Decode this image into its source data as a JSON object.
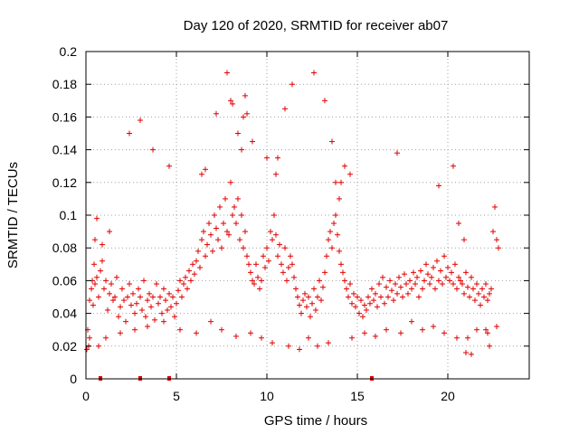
{
  "chart_data": {
    "type": "scatter",
    "title": "Day 120 of 2020, SRMTID for receiver ab07",
    "xlabel": "GPS time / hours",
    "ylabel": "SRMTID / TECUs",
    "xlim": [
      0,
      24.5
    ],
    "ylim": [
      0,
      0.2
    ],
    "xticks": [
      0,
      5,
      10,
      15,
      20
    ],
    "xtick_labels": [
      "0",
      "5",
      "10",
      "15",
      "20"
    ],
    "yticks": [
      0,
      0.02,
      0.04,
      0.06,
      0.08,
      0.1,
      0.12,
      0.14,
      0.16,
      0.18,
      0.2
    ],
    "ytick_labels": [
      "0",
      "0.02",
      "0.04",
      "0.06",
      "0.08",
      "0.1",
      "0.12",
      "0.14",
      "0.16",
      "0.18",
      "0.2"
    ],
    "grid": true,
    "marker": "+",
    "color": "#e00000",
    "series": [
      {
        "name": "SRMTID",
        "x": [
          0.05,
          0.1,
          0.15,
          0.2,
          0.3,
          0.35,
          0.4,
          0.45,
          0.5,
          0.6,
          0.7,
          0.8,
          0.9,
          1.0,
          1.1,
          1.2,
          1.3,
          1.4,
          1.5,
          1.6,
          1.7,
          1.8,
          1.9,
          2.0,
          2.1,
          2.2,
          2.3,
          2.4,
          2.5,
          2.6,
          2.7,
          2.8,
          2.9,
          3.0,
          3.1,
          3.2,
          3.3,
          3.4,
          3.5,
          3.6,
          3.7,
          3.8,
          3.9,
          4.0,
          4.1,
          4.2,
          4.3,
          4.4,
          4.5,
          4.6,
          4.7,
          4.8,
          4.9,
          5.0,
          5.1,
          5.2,
          5.3,
          5.4,
          5.5,
          5.6,
          5.7,
          5.8,
          5.9,
          6.0,
          6.1,
          6.2,
          6.3,
          6.4,
          6.5,
          6.6,
          6.7,
          6.8,
          6.9,
          7.0,
          7.1,
          7.2,
          7.3,
          7.4,
          7.5,
          7.6,
          7.7,
          7.8,
          7.9,
          8.0,
          8.1,
          8.2,
          8.3,
          8.4,
          8.5,
          8.6,
          8.7,
          8.8,
          8.9,
          9.0,
          9.1,
          9.2,
          9.3,
          9.4,
          9.5,
          9.6,
          9.7,
          9.8,
          9.9,
          10.0,
          10.1,
          10.2,
          10.3,
          10.4,
          10.5,
          10.6,
          10.7,
          10.8,
          10.9,
          11.0,
          11.1,
          11.2,
          11.3,
          11.4,
          11.5,
          11.6,
          11.7,
          11.8,
          11.9,
          12.0,
          12.1,
          12.2,
          12.3,
          12.4,
          12.5,
          12.6,
          12.7,
          12.8,
          12.9,
          13.0,
          13.1,
          13.2,
          13.3,
          13.4,
          13.5,
          13.6,
          13.7,
          13.8,
          13.9,
          14.0,
          14.1,
          14.2,
          14.3,
          14.4,
          14.5,
          14.6,
          14.7,
          14.8,
          14.9,
          15.0,
          15.1,
          15.2,
          15.3,
          15.4,
          15.5,
          15.6,
          15.7,
          15.8,
          15.9,
          16.0,
          16.1,
          16.2,
          16.3,
          16.4,
          16.5,
          16.6,
          16.7,
          16.8,
          16.9,
          17.0,
          17.1,
          17.2,
          17.3,
          17.4,
          17.5,
          17.6,
          17.7,
          17.8,
          17.9,
          18.0,
          18.1,
          18.2,
          18.3,
          18.4,
          18.5,
          18.6,
          18.7,
          18.8,
          18.9,
          19.0,
          19.1,
          19.2,
          19.3,
          19.4,
          19.5,
          19.6,
          19.7,
          19.8,
          19.9,
          20.0,
          20.1,
          20.2,
          20.3,
          20.4,
          20.5,
          20.6,
          20.7,
          20.8,
          20.9,
          21.0,
          21.1,
          21.2,
          21.3,
          21.4,
          21.5,
          21.6,
          21.7,
          21.8,
          21.9,
          22.0,
          22.1,
          22.2,
          22.3,
          22.4,
          22.5,
          22.6,
          22.7,
          22.8,
          0.5,
          0.6,
          0.9,
          1.3,
          2.4,
          3.0,
          3.7,
          4.6,
          6.4,
          6.6,
          7.2,
          7.8,
          8.0,
          8.1,
          8.4,
          8.6,
          8.7,
          8.8,
          8.9,
          9.2,
          10.0,
          10.5,
          10.6,
          11.0,
          11.4,
          12.6,
          13.2,
          13.6,
          13.8,
          14.0,
          14.1,
          14.3,
          14.6,
          17.2,
          19.5,
          20.3,
          20.6,
          20.9,
          21.1,
          21.3,
          22.1,
          22.3,
          0.2,
          0.7,
          1.1,
          1.9,
          2.7,
          3.4,
          4.3,
          5.2,
          6.1,
          6.9,
          7.5,
          8.3,
          9.1,
          9.7,
          10.3,
          11.2,
          11.8,
          12.3,
          12.8,
          13.4,
          14.7,
          15.4,
          16.0,
          16.6,
          17.4,
          18.0,
          18.6,
          19.2,
          19.8,
          20.5,
          21.0,
          21.6,
          22.2,
          22.7
        ],
        "y": [
          0.018,
          0.03,
          0.02,
          0.048,
          0.055,
          0.06,
          0.045,
          0.07,
          0.058,
          0.062,
          0.05,
          0.066,
          0.072,
          0.055,
          0.06,
          0.042,
          0.052,
          0.058,
          0.048,
          0.05,
          0.062,
          0.038,
          0.044,
          0.055,
          0.048,
          0.035,
          0.05,
          0.058,
          0.045,
          0.052,
          0.04,
          0.046,
          0.055,
          0.05,
          0.042,
          0.06,
          0.038,
          0.048,
          0.052,
          0.044,
          0.05,
          0.036,
          0.058,
          0.046,
          0.05,
          0.04,
          0.055,
          0.048,
          0.042,
          0.052,
          0.044,
          0.05,
          0.038,
          0.046,
          0.054,
          0.06,
          0.05,
          0.058,
          0.062,
          0.055,
          0.066,
          0.06,
          0.07,
          0.064,
          0.072,
          0.078,
          0.068,
          0.085,
          0.09,
          0.075,
          0.082,
          0.095,
          0.088,
          0.078,
          0.1,
          0.092,
          0.085,
          0.105,
          0.08,
          0.095,
          0.11,
          0.09,
          0.088,
          0.12,
          0.1,
          0.105,
          0.095,
          0.11,
          0.085,
          0.1,
          0.08,
          0.09,
          0.075,
          0.07,
          0.065,
          0.06,
          0.058,
          0.07,
          0.062,
          0.055,
          0.06,
          0.075,
          0.068,
          0.08,
          0.072,
          0.09,
          0.085,
          0.1,
          0.088,
          0.075,
          0.082,
          0.07,
          0.065,
          0.08,
          0.06,
          0.068,
          0.075,
          0.07,
          0.062,
          0.055,
          0.05,
          0.045,
          0.04,
          0.048,
          0.052,
          0.044,
          0.05,
          0.038,
          0.046,
          0.055,
          0.042,
          0.05,
          0.06,
          0.048,
          0.056,
          0.065,
          0.075,
          0.085,
          0.09,
          0.08,
          0.095,
          0.1,
          0.088,
          0.078,
          0.07,
          0.065,
          0.06,
          0.055,
          0.05,
          0.058,
          0.046,
          0.052,
          0.044,
          0.05,
          0.04,
          0.048,
          0.038,
          0.045,
          0.042,
          0.05,
          0.046,
          0.055,
          0.048,
          0.052,
          0.044,
          0.058,
          0.05,
          0.062,
          0.046,
          0.056,
          0.05,
          0.06,
          0.054,
          0.048,
          0.058,
          0.052,
          0.062,
          0.056,
          0.05,
          0.064,
          0.058,
          0.052,
          0.06,
          0.055,
          0.065,
          0.058,
          0.062,
          0.05,
          0.066,
          0.055,
          0.06,
          0.07,
          0.064,
          0.058,
          0.062,
          0.068,
          0.055,
          0.072,
          0.06,
          0.066,
          0.058,
          0.075,
          0.062,
          0.068,
          0.06,
          0.065,
          0.058,
          0.07,
          0.055,
          0.062,
          0.06,
          0.058,
          0.052,
          0.065,
          0.056,
          0.05,
          0.062,
          0.055,
          0.048,
          0.058,
          0.052,
          0.045,
          0.055,
          0.05,
          0.058,
          0.048,
          0.052,
          0.055,
          0.09,
          0.105,
          0.085,
          0.08,
          0.085,
          0.098,
          0.082,
          0.09,
          0.15,
          0.158,
          0.14,
          0.13,
          0.125,
          0.128,
          0.162,
          0.187,
          0.17,
          0.168,
          0.15,
          0.14,
          0.16,
          0.173,
          0.162,
          0.145,
          0.135,
          0.125,
          0.135,
          0.165,
          0.18,
          0.187,
          0.17,
          0.145,
          0.12,
          0.11,
          0.12,
          0.13,
          0.125,
          0.138,
          0.118,
          0.13,
          0.095,
          0.085,
          0.025,
          0.015,
          0.03,
          0.02,
          0.025,
          0.02,
          0.025,
          0.028,
          0.03,
          0.032,
          0.035,
          0.03,
          0.028,
          0.035,
          0.03,
          0.026,
          0.028,
          0.025,
          0.022,
          0.02,
          0.018,
          0.025,
          0.02,
          0.022,
          0.025,
          0.028,
          0.026,
          0.03,
          0.028,
          0.035,
          0.03,
          0.032,
          0.028,
          0.025,
          0.016,
          0.03,
          0.028,
          0.032
        ]
      }
    ],
    "zero_markers_x": [
      0.8,
      3.0,
      4.6,
      15.8
    ]
  }
}
